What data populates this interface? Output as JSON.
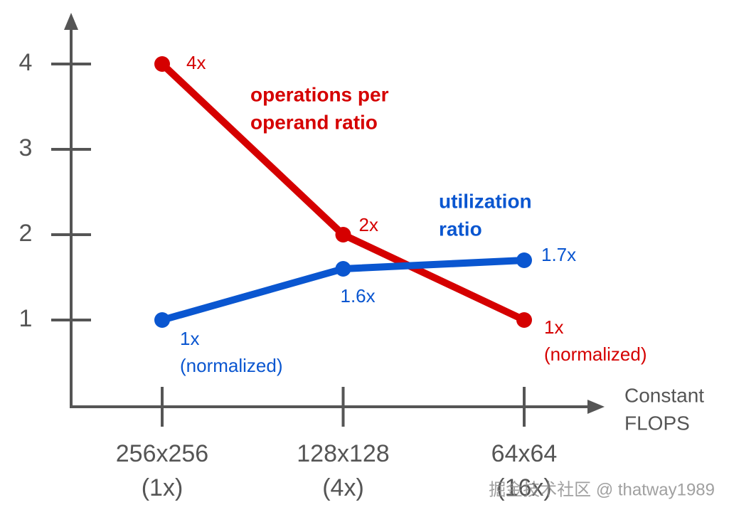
{
  "chart_data": {
    "type": "line",
    "categories": [
      "256x256 (1x)",
      "128x128 (4x)",
      "64x64 (16x)"
    ],
    "x_label": [
      "Constant",
      "FLOPS"
    ],
    "ylim": [
      0,
      4.5
    ],
    "yticks": [
      1,
      2,
      3,
      4
    ],
    "series": [
      {
        "name": [
          "operations per",
          "operand ratio"
        ],
        "color": "#d50000",
        "values": [
          4,
          2,
          1
        ],
        "value_labels": [
          "4x",
          "2x",
          "1x (normalized)"
        ]
      },
      {
        "name": [
          "utilization",
          "ratio"
        ],
        "color": "#0a56d0",
        "values": [
          1,
          1.6,
          1.7
        ],
        "value_labels": [
          "1x (normalized)",
          "1.6x",
          "1.7x"
        ]
      }
    ],
    "watermark": "掘金技术社区 @ thatway1989"
  }
}
